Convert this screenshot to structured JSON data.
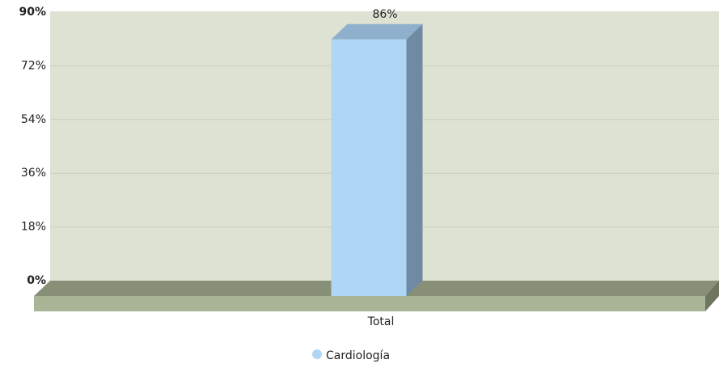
{
  "chart_data": {
    "type": "bar3d",
    "categories": [
      "Total"
    ],
    "series": [
      {
        "name": "Cardiología",
        "color": "#b0d6f5",
        "values": [
          86
        ],
        "value_labels": [
          "86%"
        ]
      }
    ],
    "ylim": [
      0,
      90
    ],
    "yticks": [
      {
        "value": 0,
        "label": "0%"
      },
      {
        "value": 18,
        "label": "18%"
      },
      {
        "value": 36,
        "label": "36%"
      },
      {
        "value": 54,
        "label": "54%"
      },
      {
        "value": 72,
        "label": "72%"
      },
      {
        "value": 90,
        "label": "90%"
      }
    ],
    "grid": true,
    "legend": "bottom"
  }
}
